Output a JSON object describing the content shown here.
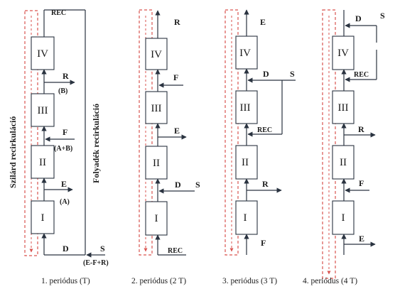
{
  "side_labels": {
    "solid": "Szilárd recirkuláció",
    "liquid": "Folyadék recirkuláció"
  },
  "p1": {
    "rec": "REC",
    "r": "R",
    "b": "(B)",
    "f": "F",
    "ab": "(A+B)",
    "e": "E",
    "a": "(A)",
    "d": "D",
    "s": "S",
    "efr": "(E-F+R)",
    "caption": "1. periódus   (T)"
  },
  "p2": {
    "r": "R",
    "f": "F",
    "e": "E",
    "d": "D",
    "s": "S",
    "rec": "REC",
    "caption": "2. periódus   (2 T)"
  },
  "p3": {
    "e": "E",
    "d": "D",
    "s": "S",
    "rec": "REC",
    "r": "R",
    "f": "F",
    "caption": "3. periódus  (3 T)"
  },
  "p4": {
    "d": "D",
    "s": "S",
    "rec": "REC",
    "r": "R",
    "f": "F",
    "e": "E",
    "caption": "4. periódus  (4 T)"
  },
  "columns": [
    "IV",
    "III",
    "II",
    "I"
  ]
}
